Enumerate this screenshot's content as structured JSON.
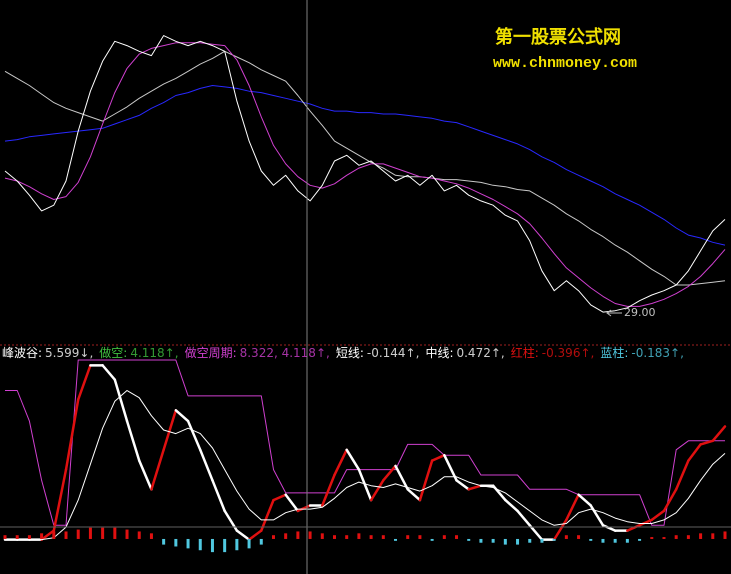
{
  "chart_data": [
    {
      "type": "line",
      "watermark_title": "第一股票公式网",
      "watermark_url": "www.chnmoney.com",
      "annotation": "29.00",
      "ylim": [
        27,
        51
      ],
      "series": [
        {
          "color": "#2828ff",
          "values": [
            41.1,
            41.2,
            41.4,
            41.5,
            41.6,
            41.7,
            41.8,
            41.9,
            42.0,
            42.3,
            42.6,
            42.9,
            43.4,
            43.8,
            44.3,
            44.5,
            44.8,
            45.0,
            44.9,
            44.8,
            44.6,
            44.5,
            44.3,
            44.1,
            43.9,
            43.7,
            43.4,
            43.2,
            43.2,
            43.1,
            43.1,
            43.0,
            43.0,
            42.9,
            42.8,
            42.7,
            42.5,
            42.4,
            42.1,
            41.8,
            41.5,
            41.2,
            40.9,
            40.5,
            40.0,
            39.6,
            39.1,
            38.7,
            38.3,
            37.9,
            37.4,
            37.0,
            36.6,
            36.1,
            35.6,
            35.0,
            34.5,
            34.3,
            34.0,
            33.8
          ]
        },
        {
          "color": "#c8c8c8",
          "values": [
            46.0,
            45.5,
            45.0,
            44.4,
            43.8,
            43.4,
            43.1,
            42.8,
            42.5,
            43.0,
            43.5,
            44.1,
            44.6,
            45.1,
            45.5,
            46.0,
            46.5,
            46.9,
            47.4,
            47.0,
            46.6,
            46.1,
            45.7,
            45.3,
            44.3,
            43.2,
            42.2,
            41.1,
            40.6,
            40.1,
            39.6,
            39.2,
            38.7,
            38.6,
            38.6,
            38.5,
            38.4,
            38.4,
            38.3,
            38.2,
            38.0,
            37.9,
            37.7,
            37.6,
            37.1,
            36.6,
            36.0,
            35.5,
            34.9,
            34.4,
            33.8,
            33.3,
            32.7,
            32.1,
            31.6,
            31.0,
            31.0,
            31.1,
            31.2,
            31.3
          ]
        },
        {
          "color": "#d040d0",
          "values": [
            38.5,
            38.3,
            37.9,
            37.4,
            37.0,
            37.2,
            38.2,
            40.0,
            42.3,
            44.5,
            46.2,
            47.2,
            47.6,
            47.8,
            48.0,
            48.0,
            48.0,
            47.9,
            47.8,
            46.8,
            45.0,
            42.8,
            40.8,
            39.5,
            38.6,
            38.0,
            37.8,
            38.1,
            38.7,
            39.2,
            39.5,
            39.5,
            39.2,
            38.9,
            38.6,
            38.5,
            38.3,
            38.1,
            37.8,
            37.4,
            37.0,
            36.5,
            36.0,
            35.3,
            34.3,
            33.2,
            32.2,
            31.5,
            30.8,
            30.2,
            29.7,
            29.5,
            29.5,
            29.7,
            30.0,
            30.4,
            30.9,
            31.6,
            32.5,
            33.5
          ]
        },
        {
          "color": "#ffffff",
          "values": [
            39.0,
            38.3,
            37.3,
            36.2,
            36.6,
            38.3,
            41.8,
            44.6,
            46.7,
            48.1,
            47.8,
            47.4,
            47.1,
            48.5,
            48.1,
            47.8,
            48.1,
            47.8,
            47.4,
            43.9,
            41.1,
            39.0,
            38.0,
            38.7,
            37.6,
            36.9,
            38.0,
            39.7,
            40.1,
            39.4,
            39.7,
            39.0,
            38.3,
            38.7,
            38.0,
            38.7,
            37.6,
            38.0,
            37.3,
            36.9,
            36.6,
            35.9,
            35.5,
            34.1,
            32.0,
            30.6,
            31.3,
            30.6,
            29.6,
            29.1,
            29.2,
            29.4,
            29.9,
            30.3,
            30.6,
            31.0,
            32.0,
            33.4,
            34.8,
            35.6
          ]
        }
      ]
    },
    {
      "type": "line",
      "ylim": [
        -1.5,
        9.8
      ],
      "y2lim": [
        -0.4,
        5.0
      ],
      "series": [
        {
          "name": "峰波谷:",
          "value_label": "5.599↓,",
          "color": "#ffffff"
        },
        {
          "name": "做空:",
          "value_label": "4.118↑,",
          "color": "#40c040"
        },
        {
          "name": "做空周期:",
          "value_label": "8.322, 4.118↑,",
          "color": "#d040d0",
          "values": [
            7.6,
            7.6,
            5.9,
            2.6,
            0.1,
            0.1,
            9.3,
            9.3,
            9.3,
            9.3,
            9.3,
            9.3,
            9.3,
            9.3,
            9.3,
            7.3,
            7.3,
            7.3,
            7.3,
            7.3,
            7.3,
            7.3,
            3.2,
            1.9,
            1.9,
            1.9,
            1.9,
            1.9,
            3.2,
            3.2,
            3.2,
            3.2,
            3.2,
            4.6,
            4.6,
            4.6,
            4.0,
            4.0,
            4.0,
            2.9,
            2.9,
            2.9,
            2.9,
            2.1,
            2.1,
            2.1,
            2.1,
            1.8,
            1.8,
            1.8,
            1.8,
            1.8,
            1.8,
            0.1,
            0.1,
            4.3,
            4.8,
            4.8,
            4.8,
            4.8
          ]
        },
        {
          "name": "短线:",
          "value_label": "-0.144↑,",
          "color": "#ffffff",
          "rise_color": "#e01010",
          "line_width": 2.5,
          "values": [
            -0.7,
            -0.7,
            -0.7,
            -0.7,
            -0.2,
            3.2,
            7.1,
            9.0,
            9.0,
            8.2,
            5.9,
            3.7,
            2.1,
            4.3,
            6.5,
            5.9,
            4.3,
            2.6,
            0.9,
            -0.2,
            -0.7,
            -0.2,
            1.5,
            1.8,
            0.9,
            1.2,
            1.2,
            2.9,
            4.3,
            3.2,
            1.5,
            2.6,
            3.4,
            2.1,
            1.5,
            3.7,
            4.0,
            2.6,
            2.1,
            2.3,
            2.3,
            1.5,
            0.9,
            0.1,
            -0.7,
            -0.7,
            0.4,
            1.8,
            1.2,
            0.1,
            -0.2,
            -0.2,
            0.1,
            0.4,
            0.9,
            2.1,
            3.7,
            4.6,
            4.8,
            5.6
          ]
        },
        {
          "name": "中线:",
          "value_label": "0.472↑,",
          "color": "#ffffff",
          "values": [
            -0.7,
            -0.7,
            -0.7,
            -0.7,
            -0.6,
            0.0,
            1.5,
            3.5,
            5.5,
            7.0,
            7.6,
            7.2,
            6.2,
            5.4,
            5.2,
            5.5,
            5.2,
            4.4,
            3.2,
            2.0,
            1.0,
            0.4,
            0.4,
            0.8,
            1.0,
            1.0,
            1.1,
            1.6,
            2.2,
            2.5,
            2.3,
            2.2,
            2.4,
            2.2,
            2.0,
            2.3,
            2.8,
            2.8,
            2.5,
            2.3,
            2.2,
            1.9,
            1.4,
            0.9,
            0.4,
            0.1,
            0.2,
            0.8,
            1.0,
            0.8,
            0.5,
            0.3,
            0.2,
            0.2,
            0.4,
            0.8,
            1.6,
            2.6,
            3.5,
            4.1
          ]
        },
        {
          "name": "红柱:",
          "value_label": "-0.396↑,",
          "color": "#e01010",
          "type": "bar",
          "axis": "y2",
          "values": [
            0.1,
            0.1,
            0.1,
            0.15,
            0.2,
            0.2,
            0.25,
            0.3,
            0.3,
            0.3,
            0.25,
            0.2,
            0.15,
            null,
            null,
            null,
            null,
            null,
            null,
            null,
            null,
            null,
            0.1,
            0.15,
            0.2,
            0.2,
            0.15,
            0.1,
            0.1,
            0.15,
            0.1,
            0.1,
            null,
            0.1,
            0.1,
            null,
            0.1,
            0.1,
            null,
            null,
            null,
            null,
            null,
            null,
            null,
            null,
            0.1,
            0.1,
            null,
            null,
            null,
            null,
            null,
            0.05,
            0.05,
            0.1,
            0.1,
            0.15,
            0.15,
            0.2
          ]
        },
        {
          "name": "蓝柱:",
          "value_label": "-0.183↑,",
          "color": "#50c8e0",
          "type": "bar",
          "axis": "y2",
          "values": [
            null,
            null,
            null,
            null,
            null,
            null,
            null,
            null,
            null,
            null,
            null,
            null,
            null,
            -0.15,
            -0.2,
            -0.25,
            -0.3,
            -0.35,
            -0.35,
            -0.3,
            -0.25,
            -0.15,
            null,
            null,
            null,
            null,
            null,
            null,
            null,
            null,
            null,
            null,
            -0.05,
            null,
            null,
            -0.05,
            null,
            null,
            -0.05,
            -0.1,
            -0.1,
            -0.15,
            -0.15,
            -0.1,
            -0.1,
            -0.05,
            null,
            null,
            -0.05,
            -0.1,
            -0.1,
            -0.1,
            -0.05,
            null,
            null,
            null,
            null,
            null,
            null,
            null
          ]
        }
      ]
    }
  ]
}
